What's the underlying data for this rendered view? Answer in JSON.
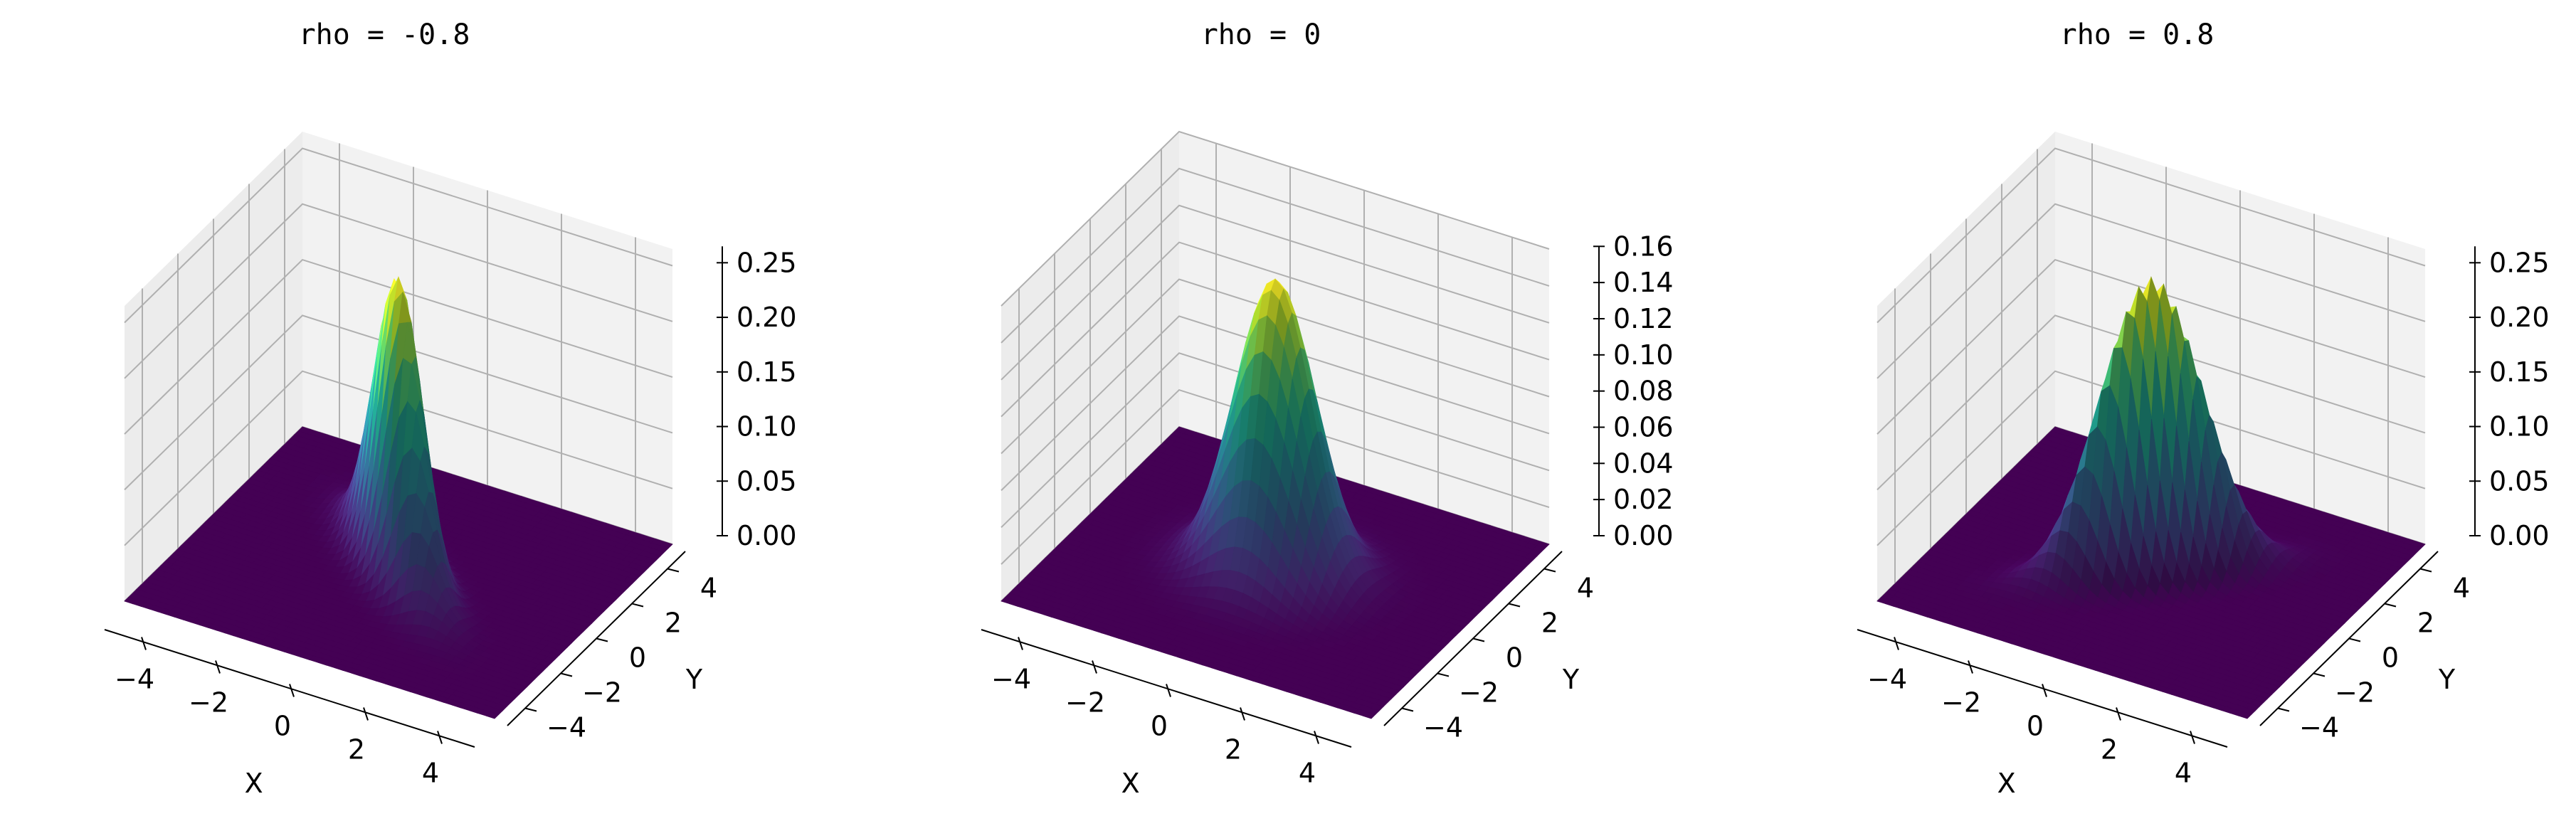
{
  "chart_data": [
    {
      "type": "surface",
      "title": "rho = -0.8",
      "rho": -0.8,
      "xlabel": "X",
      "ylabel": "Y",
      "x_ticks": [
        "−4",
        "−2",
        "0",
        "2",
        "4"
      ],
      "y_ticks": [
        "−4",
        "−2",
        "0",
        "2",
        "4"
      ],
      "z_ticks": [
        "0.00",
        "0.05",
        "0.10",
        "0.15",
        "0.20",
        "0.25"
      ],
      "x_range": [
        -5,
        5
      ],
      "y_range": [
        -5,
        5
      ],
      "z_range": [
        0,
        0.265
      ],
      "z_peak": 0.265,
      "colormap": "viridis",
      "grid": true
    },
    {
      "type": "surface",
      "title": "rho = 0",
      "rho": 0,
      "xlabel": "X",
      "ylabel": "Y",
      "x_ticks": [
        "−4",
        "−2",
        "0",
        "2",
        "4"
      ],
      "y_ticks": [
        "−4",
        "−2",
        "0",
        "2",
        "4"
      ],
      "z_ticks": [
        "0.00",
        "0.02",
        "0.04",
        "0.06",
        "0.08",
        "0.10",
        "0.12",
        "0.14",
        "0.16"
      ],
      "x_range": [
        -5,
        5
      ],
      "y_range": [
        -5,
        5
      ],
      "z_range": [
        0,
        0.16
      ],
      "z_peak": 0.159,
      "colormap": "viridis",
      "grid": true
    },
    {
      "type": "surface",
      "title": "rho = 0.8",
      "rho": 0.8,
      "xlabel": "X",
      "ylabel": "Y",
      "x_ticks": [
        "−4",
        "−2",
        "0",
        "2",
        "4"
      ],
      "y_ticks": [
        "−4",
        "−2",
        "0",
        "2",
        "4"
      ],
      "z_ticks": [
        "0.00",
        "0.05",
        "0.10",
        "0.15",
        "0.20",
        "0.25"
      ],
      "x_range": [
        -5,
        5
      ],
      "y_range": [
        -5,
        5
      ],
      "z_range": [
        0,
        0.265
      ],
      "z_peak": 0.265,
      "colormap": "viridis",
      "grid": true
    }
  ],
  "colors": {
    "pane_left": "#ececec",
    "pane_back": "#f2f2f2",
    "pane_floor": "#f7f7f7",
    "grid": "#b0b0b0",
    "viridis": [
      "#440154",
      "#482878",
      "#3e4a89",
      "#31688e",
      "#26828e",
      "#1f9e89",
      "#35b779",
      "#6ece58",
      "#b5de2b",
      "#fde725"
    ]
  }
}
